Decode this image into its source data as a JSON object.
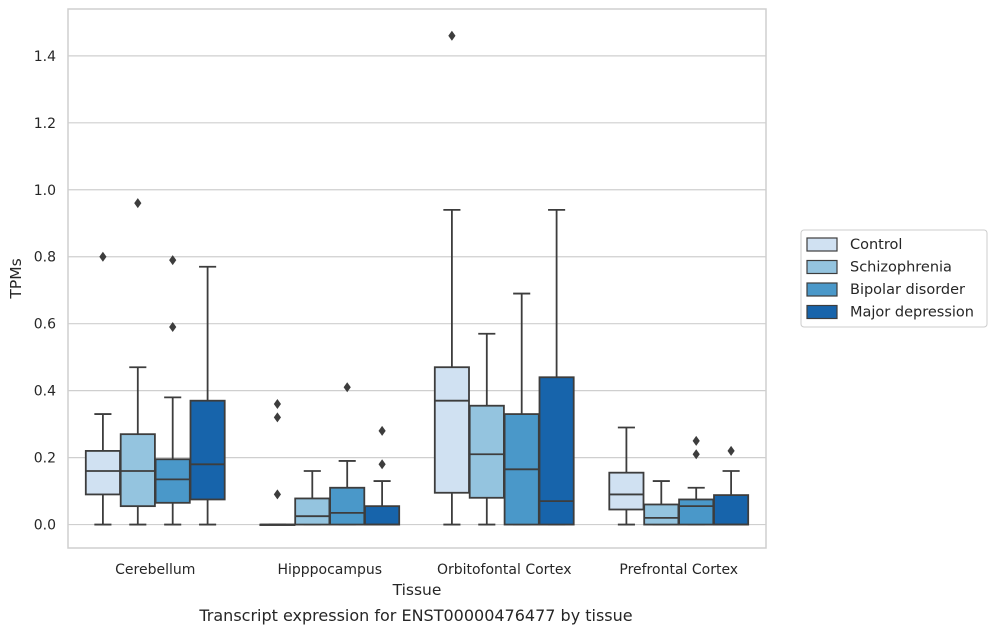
{
  "chart_data": {
    "type": "boxplot",
    "xlabel": "Tissue",
    "ylabel": "TPMs",
    "caption": "Transcript expression for ENST00000476477 by tissue",
    "ylim": [
      -0.07,
      1.54
    ],
    "yticks": [
      0.0,
      0.2,
      0.4,
      0.6,
      0.8,
      1.0,
      1.2,
      1.4
    ],
    "ytick_labels": [
      "0.0",
      "0.2",
      "0.4",
      "0.6",
      "0.8",
      "1.0",
      "1.2",
      "1.4"
    ],
    "grid": "horizontal",
    "legend_position": "right",
    "categories": [
      "Cerebellum",
      "Hipppocampus",
      "Orbitofontal Cortex",
      "Prefrontal Cortex"
    ],
    "series": [
      {
        "name": "Control",
        "color": "#d0e1f2",
        "boxes": [
          {
            "whislo": 0.0,
            "q1": 0.09,
            "med": 0.16,
            "q3": 0.22,
            "whishi": 0.33,
            "fliers": [
              0.8
            ]
          },
          {
            "whislo": 0.0,
            "q1": 0.0,
            "med": 0.0,
            "q3": 0.0,
            "whishi": 0.0,
            "fliers": [
              0.36,
              0.32,
              0.09
            ]
          },
          {
            "whislo": 0.0,
            "q1": 0.095,
            "med": 0.37,
            "q3": 0.47,
            "whishi": 0.94,
            "fliers": [
              1.46
            ]
          },
          {
            "whislo": 0.0,
            "q1": 0.045,
            "med": 0.09,
            "q3": 0.155,
            "whishi": 0.29,
            "fliers": []
          }
        ]
      },
      {
        "name": "Schizophrenia",
        "color": "#94c4df",
        "boxes": [
          {
            "whislo": 0.0,
            "q1": 0.055,
            "med": 0.16,
            "q3": 0.27,
            "whishi": 0.47,
            "fliers": [
              0.96
            ]
          },
          {
            "whislo": 0.0,
            "q1": 0.0,
            "med": 0.025,
            "q3": 0.078,
            "whishi": 0.16,
            "fliers": []
          },
          {
            "whislo": 0.0,
            "q1": 0.08,
            "med": 0.21,
            "q3": 0.355,
            "whishi": 0.57,
            "fliers": []
          },
          {
            "whislo": 0.0,
            "q1": 0.0,
            "med": 0.02,
            "q3": 0.06,
            "whishi": 0.13,
            "fliers": []
          }
        ]
      },
      {
        "name": "Bipolar disorder",
        "color": "#4a98c9",
        "boxes": [
          {
            "whislo": 0.0,
            "q1": 0.065,
            "med": 0.135,
            "q3": 0.195,
            "whishi": 0.38,
            "fliers": [
              0.79,
              0.59
            ]
          },
          {
            "whislo": 0.0,
            "q1": 0.0,
            "med": 0.035,
            "q3": 0.11,
            "whishi": 0.19,
            "fliers": [
              0.41
            ]
          },
          {
            "whislo": 0.0,
            "q1": 0.0,
            "med": 0.165,
            "q3": 0.33,
            "whishi": 0.69,
            "fliers": []
          },
          {
            "whislo": 0.0,
            "q1": 0.0,
            "med": 0.055,
            "q3": 0.075,
            "whishi": 0.11,
            "fliers": [
              0.25,
              0.21
            ]
          }
        ]
      },
      {
        "name": "Major depression",
        "color": "#1764ab",
        "boxes": [
          {
            "whislo": 0.0,
            "q1": 0.075,
            "med": 0.18,
            "q3": 0.37,
            "whishi": 0.77,
            "fliers": []
          },
          {
            "whislo": 0.0,
            "q1": 0.0,
            "med": 0.0,
            "q3": 0.055,
            "whishi": 0.13,
            "fliers": [
              0.28,
              0.18
            ]
          },
          {
            "whislo": 0.0,
            "q1": 0.0,
            "med": 0.07,
            "q3": 0.44,
            "whishi": 0.94,
            "fliers": []
          },
          {
            "whislo": 0.0,
            "q1": 0.0,
            "med": 0.0,
            "q3": 0.088,
            "whishi": 0.16,
            "fliers": [
              0.22
            ]
          }
        ]
      }
    ]
  }
}
